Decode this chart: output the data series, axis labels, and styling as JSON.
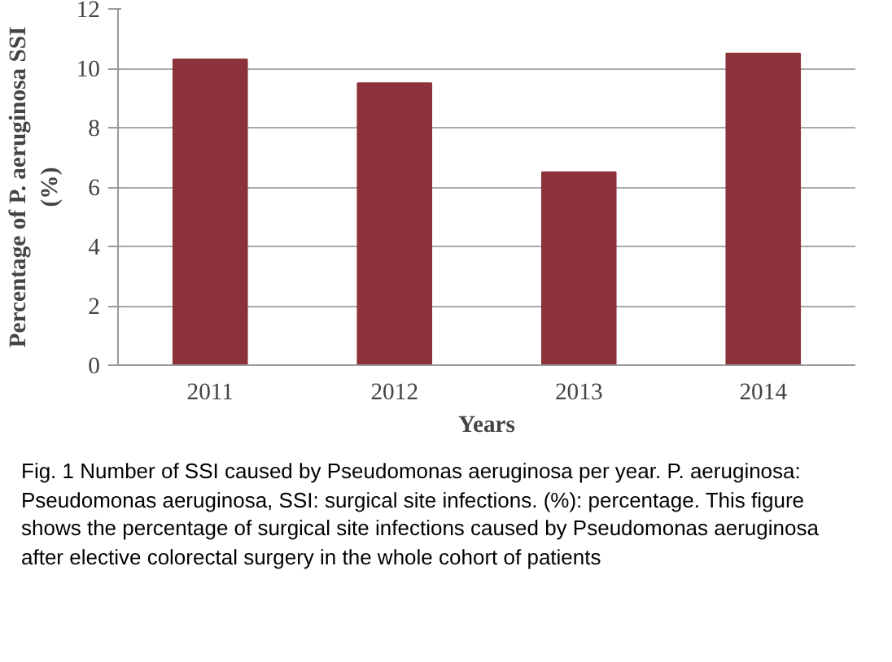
{
  "chart_data": {
    "type": "bar",
    "xlabel": "Years",
    "ylabel": "Percentage of P. aeruginosa SSI\n(%)",
    "categories": [
      "2011",
      "2012",
      "2013",
      "2014"
    ],
    "values": [
      10.3,
      9.5,
      6.5,
      10.5
    ],
    "color": "#8b323b",
    "ylim": [
      0,
      12
    ],
    "yticks": [
      0,
      2,
      4,
      6,
      8,
      10,
      12
    ],
    "grid": "y",
    "annotations": [
      "Fig. 1 Number of SSI caused by Pseudomonas aeruginosa per year. P. aeruginosa: Pseudomonas aeruginosa, SSI: surgical site infections. (%): percentage. This figure shows the percentage of surgical site infections caused by Pseudomonas aeruginosa after elective colorectal surgery in the whole cohort of patients"
    ]
  }
}
